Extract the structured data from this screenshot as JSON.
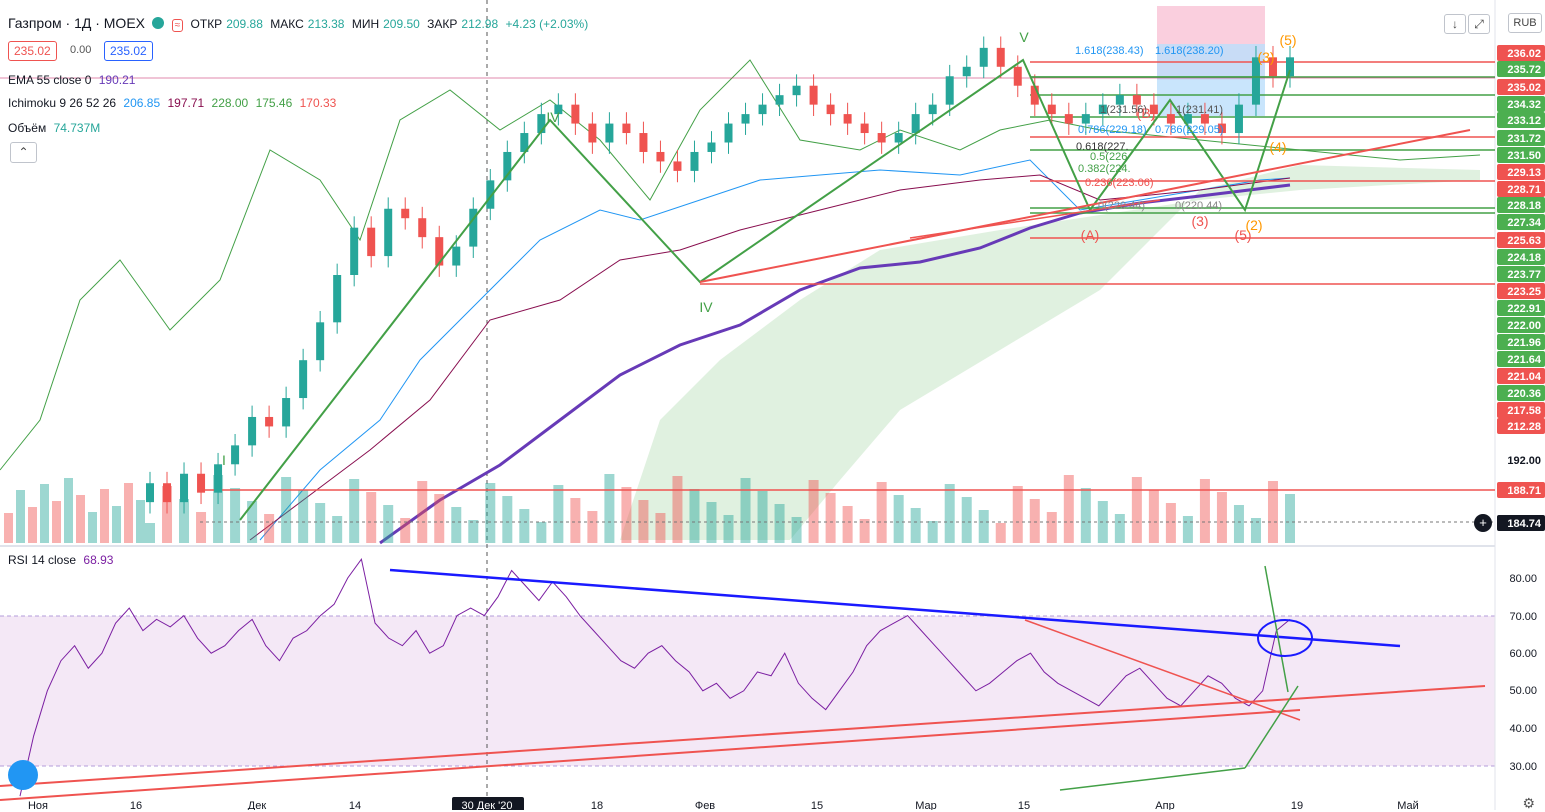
{
  "header": {
    "symbol": "Газпром · 1Д · MOEX",
    "open_label": "ОТКР",
    "open": "209.88",
    "high_label": "МАКС",
    "high": "213.38",
    "low_label": "МИН",
    "low": "209.50",
    "close_label": "ЗАКР",
    "close": "212.98",
    "change": "+4.23 (+2.03%)",
    "sell_price": "235.02",
    "spread": "0.00",
    "buy_price": "235.02",
    "currency": "RUB",
    "collapse_icon": "chevron-up-icon",
    "colors": {
      "up": "#26a69a",
      "down": "#ef5350"
    }
  },
  "indicators": {
    "ema": {
      "label": "EMA 55 close 0",
      "value": "190.21",
      "color": "#673ab7"
    },
    "ichimoku": {
      "label": "Ichimoku 9 26 52 26",
      "values": [
        {
          "v": "206.85",
          "color": "#2196f3"
        },
        {
          "v": "197.71",
          "color": "#880e4f"
        },
        {
          "v": "228.00",
          "color": "#43a047"
        },
        {
          "v": "175.46",
          "color": "#43a047"
        },
        {
          "v": "170.33",
          "color": "#ef5350"
        }
      ]
    },
    "volume": {
      "label": "Объём",
      "value": "74.737M",
      "color": "#26a69a"
    },
    "rsi": {
      "label": "RSI 14 close",
      "value": "68.93",
      "color": "#7b1fa2"
    }
  },
  "chart_data": {
    "type": "candlestick",
    "x_labels": [
      "Ноя",
      "16",
      "Дек",
      "14",
      "30 Дек '20",
      "18",
      "Фев",
      "15",
      "Мар",
      "15",
      "Апр",
      "19",
      "Май"
    ],
    "price_labels": [
      {
        "v": "236.02",
        "bg": "#ef5350"
      },
      {
        "v": "235.72",
        "bg": "#4caf50"
      },
      {
        "v": "235.02",
        "bg": "#ef5350"
      },
      {
        "v": "234.32",
        "bg": "#4caf50"
      },
      {
        "v": "233.12",
        "bg": "#4caf50"
      },
      {
        "v": "231.72",
        "bg": "#4caf50"
      },
      {
        "v": "231.50",
        "bg": "#4caf50"
      },
      {
        "v": "229.13",
        "bg": "#ef5350"
      },
      {
        "v": "228.71",
        "bg": "#ef5350"
      },
      {
        "v": "228.18",
        "bg": "#4caf50"
      },
      {
        "v": "227.34",
        "bg": "#4caf50"
      },
      {
        "v": "225.63",
        "bg": "#ef5350"
      },
      {
        "v": "224.18",
        "bg": "#4caf50"
      },
      {
        "v": "223.77",
        "bg": "#4caf50"
      },
      {
        "v": "223.25",
        "bg": "#ef5350"
      },
      {
        "v": "222.91",
        "bg": "#4caf50"
      },
      {
        "v": "222.00",
        "bg": "#4caf50"
      },
      {
        "v": "221.96",
        "bg": "#4caf50"
      },
      {
        "v": "221.64",
        "bg": "#4caf50"
      },
      {
        "v": "221.04",
        "bg": "#ef5350"
      },
      {
        "v": "220.36",
        "bg": "#4caf50"
      },
      {
        "v": "217.58",
        "bg": "#ef5350"
      },
      {
        "v": "212.28",
        "bg": "#ef5350"
      },
      {
        "v": "192.00",
        "bg": ""
      },
      {
        "v": "188.71",
        "bg": "#ef5350"
      },
      {
        "v": "184.74",
        "bg": "#131722"
      }
    ],
    "rsi_axis": [
      "80.00",
      "70.00",
      "60.00",
      "50.00",
      "40.00",
      "30.00"
    ],
    "rsi_series": [
      22,
      38,
      50,
      58,
      62,
      56,
      60,
      68,
      72,
      66,
      69,
      67,
      70,
      64,
      60,
      62,
      66,
      69,
      62,
      58,
      64,
      66,
      70,
      73,
      80,
      85,
      68,
      64,
      62,
      66,
      60,
      62,
      70,
      72,
      70,
      75,
      82,
      78,
      74,
      79,
      75,
      70,
      66,
      62,
      58,
      56,
      60,
      62,
      58,
      55,
      50,
      52,
      48,
      50,
      55,
      54,
      60,
      52,
      48,
      45,
      50,
      55,
      62,
      66,
      68,
      70,
      66,
      62,
      58,
      54,
      50,
      52,
      55,
      58,
      60,
      55,
      52,
      50,
      48,
      46,
      50,
      54,
      56,
      52,
      48,
      46,
      50,
      54,
      52,
      48,
      46,
      50,
      66,
      69
    ],
    "price_series": [
      {
        "o": 188,
        "c": 190
      },
      {
        "o": 190,
        "c": 188
      },
      {
        "o": 188,
        "c": 191
      },
      {
        "o": 191,
        "c": 189
      },
      {
        "o": 189,
        "c": 192
      },
      {
        "o": 192,
        "c": 194
      },
      {
        "o": 194,
        "c": 197
      },
      {
        "o": 197,
        "c": 196
      },
      {
        "o": 196,
        "c": 199
      },
      {
        "o": 199,
        "c": 203
      },
      {
        "o": 203,
        "c": 207
      },
      {
        "o": 207,
        "c": 212
      },
      {
        "o": 212,
        "c": 217
      },
      {
        "o": 217,
        "c": 214
      },
      {
        "o": 214,
        "c": 219
      },
      {
        "o": 219,
        "c": 218
      },
      {
        "o": 218,
        "c": 216
      },
      {
        "o": 216,
        "c": 213
      },
      {
        "o": 213,
        "c": 215
      },
      {
        "o": 215,
        "c": 219
      },
      {
        "o": 219,
        "c": 222
      },
      {
        "o": 222,
        "c": 225
      },
      {
        "o": 225,
        "c": 227
      },
      {
        "o": 227,
        "c": 229
      },
      {
        "o": 229,
        "c": 230
      },
      {
        "o": 230,
        "c": 228
      },
      {
        "o": 228,
        "c": 226
      },
      {
        "o": 226,
        "c": 228
      },
      {
        "o": 228,
        "c": 227
      },
      {
        "o": 227,
        "c": 225
      },
      {
        "o": 225,
        "c": 224
      },
      {
        "o": 224,
        "c": 223
      },
      {
        "o": 223,
        "c": 225
      },
      {
        "o": 225,
        "c": 226
      },
      {
        "o": 226,
        "c": 228
      },
      {
        "o": 228,
        "c": 229
      },
      {
        "o": 229,
        "c": 230
      },
      {
        "o": 230,
        "c": 231
      },
      {
        "o": 231,
        "c": 232
      },
      {
        "o": 232,
        "c": 230
      },
      {
        "o": 230,
        "c": 229
      },
      {
        "o": 229,
        "c": 228
      },
      {
        "o": 228,
        "c": 227
      },
      {
        "o": 227,
        "c": 226
      },
      {
        "o": 226,
        "c": 227
      },
      {
        "o": 227,
        "c": 229
      },
      {
        "o": 229,
        "c": 230
      },
      {
        "o": 230,
        "c": 233
      },
      {
        "o": 233,
        "c": 234
      },
      {
        "o": 234,
        "c": 236
      },
      {
        "o": 236,
        "c": 234
      },
      {
        "o": 234,
        "c": 232
      },
      {
        "o": 232,
        "c": 230
      },
      {
        "o": 230,
        "c": 229
      },
      {
        "o": 229,
        "c": 228
      },
      {
        "o": 228,
        "c": 229
      },
      {
        "o": 229,
        "c": 230
      },
      {
        "o": 230,
        "c": 231
      },
      {
        "o": 231,
        "c": 230
      },
      {
        "o": 230,
        "c": 229
      },
      {
        "o": 229,
        "c": 228
      },
      {
        "o": 228,
        "c": 229
      },
      {
        "o": 229,
        "c": 228
      },
      {
        "o": 228,
        "c": 227
      },
      {
        "o": 227,
        "c": 230
      },
      {
        "o": 230,
        "c": 235
      },
      {
        "o": 235,
        "c": 233
      },
      {
        "o": 233,
        "c": 235
      }
    ]
  },
  "annotations": {
    "waves": [
      "I",
      "IV",
      "IV",
      "V"
    ],
    "sub_waves": [
      "(B)",
      "(A)",
      "(1)",
      "(2)",
      "(3)",
      "(4)",
      "(5)",
      "(3)",
      "(5)",
      "(4)",
      "(2)",
      "(1)"
    ],
    "fib_labels": [
      "1.618(238.43)",
      "1.618(238.20)",
      "1(231.56)",
      "1(231.41)",
      "0.786(229.18)",
      "0.786(229.05)",
      "0.618(227.",
      "0.5(226",
      "0.382(224.",
      "0.236(223.06)",
      "0(220.44)",
      "0(220.44)"
    ]
  },
  "toolbar": {
    "icons": [
      "reload-icon",
      "fullscreen-icon",
      "settings-icon",
      "tv-logo-icon"
    ]
  }
}
